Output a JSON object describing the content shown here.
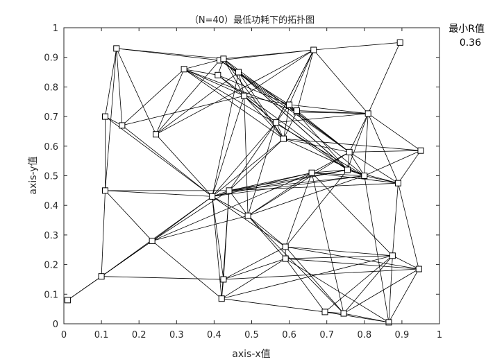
{
  "chart_data": {
    "type": "scatter",
    "title": "（N=40）最低功耗下的拓扑图",
    "xlabel": "axis-x值",
    "ylabel": "axis-y值",
    "xlim": [
      0,
      1
    ],
    "ylim": [
      0,
      1
    ],
    "xticks": [
      "0",
      "0.1",
      "0.2",
      "0.3",
      "0.4",
      "0.5",
      "0.6",
      "0.7",
      "0.8",
      "0.9",
      "1"
    ],
    "yticks": [
      "0",
      "0.1",
      "0.2",
      "0.3",
      "0.4",
      "0.5",
      "0.6",
      "0.7",
      "0.8",
      "0.9",
      "1"
    ],
    "grid": false,
    "colors": {
      "lines": "#000000",
      "axes": "#262626",
      "background": "#ffffff"
    },
    "nodes": [
      {
        "x": 0.01,
        "y": 0.08
      },
      {
        "x": 0.1,
        "y": 0.16
      },
      {
        "x": 0.11,
        "y": 0.7
      },
      {
        "x": 0.11,
        "y": 0.45
      },
      {
        "x": 0.14,
        "y": 0.93
      },
      {
        "x": 0.155,
        "y": 0.67
      },
      {
        "x": 0.235,
        "y": 0.28
      },
      {
        "x": 0.245,
        "y": 0.64
      },
      {
        "x": 0.32,
        "y": 0.86
      },
      {
        "x": 0.395,
        "y": 0.43
      },
      {
        "x": 0.41,
        "y": 0.84
      },
      {
        "x": 0.415,
        "y": 0.89
      },
      {
        "x": 0.42,
        "y": 0.085
      },
      {
        "x": 0.425,
        "y": 0.895
      },
      {
        "x": 0.425,
        "y": 0.15
      },
      {
        "x": 0.44,
        "y": 0.45
      },
      {
        "x": 0.465,
        "y": 0.85
      },
      {
        "x": 0.48,
        "y": 0.77
      },
      {
        "x": 0.49,
        "y": 0.365
      },
      {
        "x": 0.565,
        "y": 0.68
      },
      {
        "x": 0.585,
        "y": 0.625
      },
      {
        "x": 0.59,
        "y": 0.26
      },
      {
        "x": 0.59,
        "y": 0.22
      },
      {
        "x": 0.6,
        "y": 0.74
      },
      {
        "x": 0.62,
        "y": 0.715
      },
      {
        "x": 0.66,
        "y": 0.51
      },
      {
        "x": 0.665,
        "y": 0.925
      },
      {
        "x": 0.695,
        "y": 0.04
      },
      {
        "x": 0.745,
        "y": 0.035
      },
      {
        "x": 0.755,
        "y": 0.52
      },
      {
        "x": 0.76,
        "y": 0.58
      },
      {
        "x": 0.8,
        "y": 0.5
      },
      {
        "x": 0.81,
        "y": 0.71
      },
      {
        "x": 0.865,
        "y": 0.005
      },
      {
        "x": 0.875,
        "y": 0.23
      },
      {
        "x": 0.89,
        "y": 0.475
      },
      {
        "x": 0.895,
        "y": 0.95
      },
      {
        "x": 0.945,
        "y": 0.185
      },
      {
        "x": 0.95,
        "y": 0.585
      },
      {
        "x": 0.62,
        "y": 0.72
      }
    ],
    "edges": [
      [
        0,
        1
      ],
      [
        0,
        6
      ],
      [
        1,
        3
      ],
      [
        1,
        6
      ],
      [
        1,
        9
      ],
      [
        1,
        14
      ],
      [
        2,
        3
      ],
      [
        2,
        4
      ],
      [
        2,
        5
      ],
      [
        2,
        9
      ],
      [
        3,
        4
      ],
      [
        3,
        6
      ],
      [
        3,
        9
      ],
      [
        3,
        15
      ],
      [
        4,
        5
      ],
      [
        4,
        7
      ],
      [
        4,
        11
      ],
      [
        4,
        13
      ],
      [
        5,
        8
      ],
      [
        5,
        9
      ],
      [
        5,
        17
      ],
      [
        6,
        9
      ],
      [
        6,
        18
      ],
      [
        6,
        12
      ],
      [
        6,
        15
      ],
      [
        6,
        25
      ],
      [
        7,
        8
      ],
      [
        7,
        9
      ],
      [
        7,
        11
      ],
      [
        7,
        16
      ],
      [
        7,
        26
      ],
      [
        8,
        10
      ],
      [
        8,
        13
      ],
      [
        8,
        17
      ],
      [
        8,
        20
      ],
      [
        8,
        24
      ],
      [
        8,
        31
      ],
      [
        9,
        12
      ],
      [
        9,
        14
      ],
      [
        9,
        15
      ],
      [
        9,
        16
      ],
      [
        9,
        17
      ],
      [
        9,
        18
      ],
      [
        9,
        19
      ],
      [
        9,
        20
      ],
      [
        9,
        21
      ],
      [
        9,
        25
      ],
      [
        9,
        29
      ],
      [
        9,
        31
      ],
      [
        10,
        13
      ],
      [
        10,
        19
      ],
      [
        10,
        23
      ],
      [
        10,
        29
      ],
      [
        11,
        13
      ],
      [
        11,
        16
      ],
      [
        11,
        26
      ],
      [
        11,
        30
      ],
      [
        11,
        24
      ],
      [
        12,
        14
      ],
      [
        12,
        15
      ],
      [
        12,
        22
      ],
      [
        12,
        34
      ],
      [
        12,
        27
      ],
      [
        13,
        16
      ],
      [
        13,
        17
      ],
      [
        13,
        20
      ],
      [
        13,
        26
      ],
      [
        13,
        30
      ],
      [
        13,
        29
      ],
      [
        14,
        21
      ],
      [
        14,
        22
      ],
      [
        14,
        37
      ],
      [
        14,
        15
      ],
      [
        15,
        18
      ],
      [
        15,
        19
      ],
      [
        15,
        20
      ],
      [
        15,
        25
      ],
      [
        15,
        35
      ],
      [
        15,
        29
      ],
      [
        15,
        31
      ],
      [
        16,
        17
      ],
      [
        16,
        20
      ],
      [
        16,
        23
      ],
      [
        16,
        29
      ],
      [
        16,
        31
      ],
      [
        17,
        18
      ],
      [
        17,
        19
      ],
      [
        17,
        20
      ],
      [
        17,
        23
      ],
      [
        17,
        26
      ],
      [
        18,
        19
      ],
      [
        18,
        21
      ],
      [
        18,
        22
      ],
      [
        18,
        25
      ],
      [
        18,
        30
      ],
      [
        18,
        31
      ],
      [
        18,
        28
      ],
      [
        19,
        20
      ],
      [
        19,
        23
      ],
      [
        19,
        26
      ],
      [
        19,
        29
      ],
      [
        19,
        32
      ],
      [
        20,
        23
      ],
      [
        20,
        24
      ],
      [
        20,
        30
      ],
      [
        20,
        31
      ],
      [
        20,
        38
      ],
      [
        21,
        22
      ],
      [
        21,
        25
      ],
      [
        21,
        34
      ],
      [
        21,
        37
      ],
      [
        21,
        29
      ],
      [
        21,
        28
      ],
      [
        22,
        27
      ],
      [
        22,
        33
      ],
      [
        22,
        34
      ],
      [
        22,
        37
      ],
      [
        23,
        24
      ],
      [
        23,
        26
      ],
      [
        23,
        29
      ],
      [
        23,
        32
      ],
      [
        23,
        39
      ],
      [
        24,
        26
      ],
      [
        24,
        30
      ],
      [
        24,
        32
      ],
      [
        25,
        29
      ],
      [
        25,
        31
      ],
      [
        25,
        34
      ],
      [
        25,
        28
      ],
      [
        25,
        35
      ],
      [
        25,
        30
      ],
      [
        26,
        36
      ],
      [
        26,
        32
      ],
      [
        26,
        19
      ],
      [
        27,
        28
      ],
      [
        27,
        33
      ],
      [
        27,
        34
      ],
      [
        28,
        33
      ],
      [
        28,
        34
      ],
      [
        28,
        37
      ],
      [
        29,
        30
      ],
      [
        29,
        31
      ],
      [
        29,
        32
      ],
      [
        29,
        35
      ],
      [
        30,
        32
      ],
      [
        30,
        38
      ],
      [
        30,
        35
      ],
      [
        30,
        31
      ],
      [
        31,
        32
      ],
      [
        31,
        35
      ],
      [
        31,
        38
      ],
      [
        32,
        38
      ],
      [
        32,
        35
      ],
      [
        32,
        36
      ],
      [
        33,
        34
      ],
      [
        33,
        37
      ],
      [
        33,
        31
      ],
      [
        34,
        37
      ],
      [
        34,
        35
      ],
      [
        35,
        38
      ],
      [
        35,
        37
      ],
      [
        39,
        30
      ],
      [
        39,
        32
      ],
      [
        39,
        24
      ]
    ]
  },
  "side_panel": {
    "label": "最小R值",
    "value": "0.36"
  }
}
